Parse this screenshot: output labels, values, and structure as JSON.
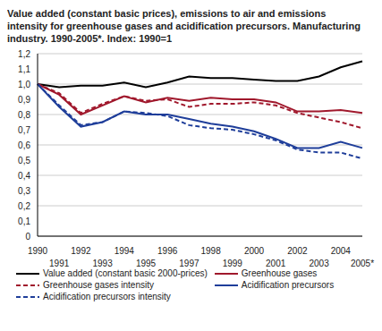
{
  "chart_data": {
    "type": "line",
    "title": "Value added (constant basic prices), emissions to air and emissions intensity for greenhouse gases and acidification precursors. Manufacturing industry. 1990-2005*. Index: 1990=1",
    "categories": [
      "1990",
      "1991",
      "1992",
      "1993",
      "1994",
      "1995",
      "1996",
      "1997",
      "1998",
      "1999",
      "2000",
      "2001",
      "2002",
      "2003",
      "2004",
      "2005*"
    ],
    "series": [
      {
        "name": "Value added (constant basic 2000-prices)",
        "color": "#000000",
        "line_style": "solid",
        "values": [
          1.0,
          0.98,
          0.99,
          0.99,
          1.01,
          0.98,
          1.01,
          1.05,
          1.04,
          1.04,
          1.03,
          1.02,
          1.02,
          1.05,
          1.11,
          1.15
        ]
      },
      {
        "name": "Greenhouse gases",
        "color": "#a0182c",
        "line_style": "solid",
        "values": [
          1.0,
          0.93,
          0.8,
          0.86,
          0.92,
          0.88,
          0.91,
          0.89,
          0.91,
          0.9,
          0.9,
          0.88,
          0.82,
          0.82,
          0.83,
          0.81
        ]
      },
      {
        "name": "Greenhouse gases intensity",
        "color": "#a0182c",
        "line_style": "dashed",
        "values": [
          1.0,
          0.94,
          0.81,
          0.87,
          0.92,
          0.89,
          0.9,
          0.85,
          0.87,
          0.87,
          0.88,
          0.86,
          0.81,
          0.78,
          0.75,
          0.71
        ]
      },
      {
        "name": "Acidification precursors",
        "color": "#1f3e9a",
        "line_style": "solid",
        "values": [
          1.0,
          0.85,
          0.72,
          0.75,
          0.82,
          0.8,
          0.8,
          0.77,
          0.74,
          0.72,
          0.69,
          0.64,
          0.58,
          0.58,
          0.62,
          0.58
        ]
      },
      {
        "name": "Acidification precursors intensity",
        "color": "#1f3e9a",
        "line_style": "dashed",
        "values": [
          1.0,
          0.86,
          0.73,
          0.75,
          0.82,
          0.81,
          0.79,
          0.73,
          0.71,
          0.7,
          0.67,
          0.63,
          0.57,
          0.55,
          0.55,
          0.51
        ]
      }
    ],
    "ylim": [
      0,
      1.2
    ],
    "yticks": [
      0,
      {
        "value": 0.1,
        "label": "0,1"
      },
      {
        "value": 0.2,
        "label": "0,2"
      },
      {
        "value": 0.3,
        "label": "0,3"
      },
      {
        "value": 0.4,
        "label": "0,4"
      },
      {
        "value": 0.5,
        "label": "0,5"
      },
      {
        "value": 0.6,
        "label": "0,6"
      },
      {
        "value": 0.7,
        "label": "0,7"
      },
      {
        "value": 0.8,
        "label": "0,8"
      },
      {
        "value": 0.9,
        "label": "0,9"
      },
      {
        "value": 1.0,
        "label": "1,0"
      },
      {
        "value": 1.1,
        "label": "1,1"
      },
      {
        "value": 1.2,
        "label": "1,2"
      }
    ],
    "grid": true,
    "legend": "bottom"
  }
}
